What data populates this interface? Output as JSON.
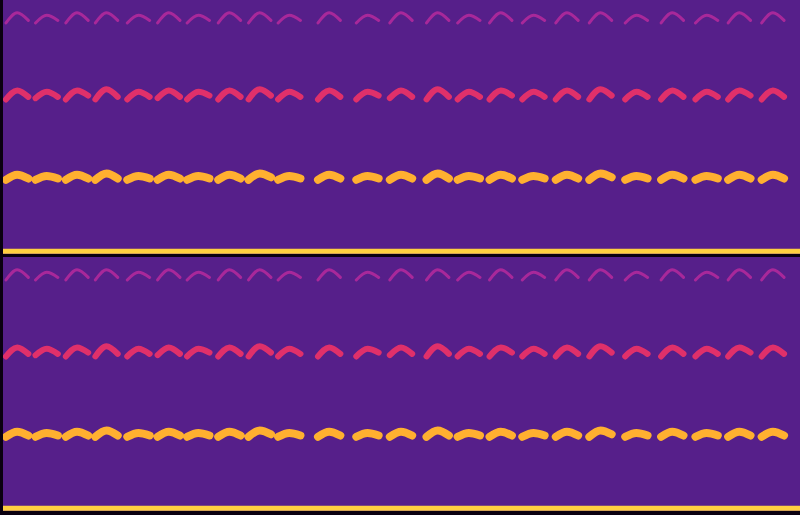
{
  "chart_data": [
    {
      "type": "line",
      "tick_labels": false,
      "grid": false,
      "xlim": [
        0,
        100
      ],
      "ylim": [
        0,
        100
      ],
      "x": [
        0.5,
        1.9,
        3.3,
        3.9,
        4.2,
        5.6,
        7.0,
        7.6,
        8.0,
        9.4,
        10.8,
        11.4,
        11.7,
        13.1,
        14.5,
        15.1,
        15.7,
        17.1,
        18.5,
        19.1,
        19.5,
        20.9,
        22.3,
        22.9,
        23.2,
        24.6,
        26.0,
        26.6,
        27.1,
        28.5,
        29.9,
        30.5,
        30.9,
        32.3,
        33.7,
        34.3,
        34.6,
        36.0,
        37.4,
        38.0,
        39.6,
        41.0,
        42.4,
        43.0,
        44.4,
        45.8,
        47.2,
        47.8,
        48.6,
        50.0,
        51.4,
        52.0,
        53.2,
        54.6,
        56.0,
        56.6,
        57.1,
        58.5,
        59.9,
        60.5,
        61.1,
        62.5,
        63.9,
        64.5,
        65.2,
        66.6,
        68.0,
        68.6,
        69.4,
        70.8,
        72.2,
        72.8,
        73.6,
        75.0,
        76.4,
        77.0,
        78.1,
        79.5,
        80.9,
        81.5,
        82.6,
        84.0,
        85.4,
        86.0,
        86.9,
        88.3,
        89.7,
        90.3,
        91.0,
        92.4,
        93.8,
        94.4,
        95.2,
        96.6,
        98.0,
        98.6
      ],
      "series": [
        {
          "color": "#a8289a",
          "line_style": "solid",
          "values": [
            91,
            95,
            92,
            null,
            91,
            94,
            92,
            null,
            91,
            95,
            92,
            null,
            91,
            95,
            92,
            null,
            91,
            94,
            92,
            null,
            91,
            95,
            92,
            null,
            91,
            94,
            92,
            null,
            91,
            95,
            92,
            null,
            91,
            95,
            92,
            null,
            91,
            94,
            92,
            null,
            91,
            95,
            92,
            null,
            91,
            94,
            92,
            null,
            91,
            95,
            92,
            null,
            91,
            95,
            92,
            null,
            91,
            94,
            92,
            null,
            91,
            95,
            92,
            null,
            91,
            94,
            92,
            null,
            91,
            95,
            92,
            null,
            91,
            95,
            92,
            null,
            91,
            94,
            92,
            null,
            91,
            95,
            92,
            null,
            91,
            94,
            92,
            null,
            91,
            95,
            92,
            null,
            91,
            95,
            92,
            null
          ]
        },
        {
          "color": "#e0306a",
          "line_style": "solid",
          "values": [
            61,
            64.5,
            62,
            null,
            61.5,
            64,
            62,
            null,
            61,
            64.5,
            62.5,
            null,
            61,
            65,
            62,
            null,
            61,
            64,
            62,
            null,
            61.5,
            64.5,
            62,
            null,
            61,
            64,
            62.5,
            null,
            61,
            64.5,
            62,
            null,
            61,
            65,
            62.5,
            null,
            61,
            64,
            62,
            null,
            61,
            64.5,
            62,
            null,
            61,
            64,
            62.5,
            null,
            61.5,
            64.5,
            62,
            null,
            61,
            65,
            62,
            null,
            61,
            64,
            62,
            null,
            61,
            64.5,
            62.5,
            null,
            61,
            64,
            62,
            null,
            61,
            64.5,
            62,
            null,
            61,
            65,
            62.5,
            null,
            61,
            64,
            62,
            null,
            61,
            64.5,
            62,
            null,
            61,
            64,
            62,
            null,
            61,
            64.5,
            62.5,
            null,
            61,
            64.5,
            62,
            null
          ]
        },
        {
          "color": "#ffb030",
          "line_style": "solid",
          "values": [
            29.5,
            31.5,
            30,
            null,
            29.5,
            31,
            30,
            null,
            29.5,
            31.5,
            30,
            null,
            29.5,
            32,
            30,
            null,
            29.5,
            31,
            30,
            null,
            29.5,
            31.5,
            30,
            null,
            29.5,
            31,
            30,
            null,
            29.5,
            31.5,
            30,
            null,
            29.5,
            32,
            30.5,
            null,
            29.5,
            31,
            30,
            null,
            29.5,
            31.5,
            30,
            null,
            29.5,
            31,
            30,
            null,
            29.5,
            31.5,
            30,
            null,
            29.5,
            32,
            30,
            null,
            29.5,
            31,
            30,
            null,
            29.5,
            31.5,
            30,
            null,
            29.5,
            31,
            30,
            null,
            29.5,
            31.5,
            30,
            null,
            29.5,
            32,
            30.5,
            null,
            29.5,
            31,
            30,
            null,
            29.5,
            31.5,
            30,
            null,
            29.5,
            31,
            30,
            null,
            29.5,
            31.5,
            30,
            null,
            29.5,
            31.5,
            30,
            null
          ]
        },
        {
          "color": "#ffd040",
          "line_style": "solid",
          "x": [
            0,
            100
          ],
          "values": [
            1.5,
            1.5
          ]
        }
      ]
    },
    {
      "type": "line",
      "tick_labels": false,
      "grid": false,
      "xlim": [
        0,
        100
      ],
      "ylim": [
        0,
        100
      ],
      "x": [
        0.5,
        1.9,
        3.3,
        3.9,
        4.2,
        5.6,
        7.0,
        7.6,
        8.0,
        9.4,
        10.8,
        11.4,
        11.7,
        13.1,
        14.5,
        15.1,
        15.7,
        17.1,
        18.5,
        19.1,
        19.5,
        20.9,
        22.3,
        22.9,
        23.2,
        24.6,
        26.0,
        26.6,
        27.1,
        28.5,
        29.9,
        30.5,
        30.9,
        32.3,
        33.7,
        34.3,
        34.6,
        36.0,
        37.4,
        38.0,
        39.6,
        41.0,
        42.4,
        43.0,
        44.4,
        45.8,
        47.2,
        47.8,
        48.6,
        50.0,
        51.4,
        52.0,
        53.2,
        54.6,
        56.0,
        56.6,
        57.1,
        58.5,
        59.9,
        60.5,
        61.1,
        62.5,
        63.9,
        64.5,
        65.2,
        66.6,
        68.0,
        68.6,
        69.4,
        70.8,
        72.2,
        72.8,
        73.6,
        75.0,
        76.4,
        77.0,
        78.1,
        79.5,
        80.9,
        81.5,
        82.6,
        84.0,
        85.4,
        86.0,
        86.9,
        88.3,
        89.7,
        90.3,
        91.0,
        92.4,
        93.8,
        94.4,
        95.2,
        96.6,
        98.0,
        98.6
      ],
      "series": [
        {
          "color": "#a8289a",
          "line_style": "solid",
          "values": [
            91,
            95,
            92,
            null,
            91,
            94,
            92,
            null,
            91,
            95,
            92,
            null,
            91,
            95,
            92,
            null,
            91,
            94,
            92,
            null,
            91,
            95,
            92,
            null,
            91,
            94,
            92,
            null,
            91,
            95,
            92,
            null,
            91,
            95,
            92,
            null,
            91,
            94,
            92,
            null,
            91,
            95,
            92,
            null,
            91,
            94,
            92,
            null,
            91,
            95,
            92,
            null,
            91,
            95,
            92,
            null,
            91,
            94,
            92,
            null,
            91,
            95,
            92,
            null,
            91,
            94,
            92,
            null,
            91,
            95,
            92,
            null,
            91,
            95,
            92,
            null,
            91,
            94,
            92,
            null,
            91,
            95,
            92,
            null,
            91,
            94,
            92,
            null,
            91,
            95,
            92,
            null,
            91,
            95,
            92,
            null
          ]
        },
        {
          "color": "#e0306a",
          "line_style": "solid",
          "values": [
            61,
            64.5,
            62,
            null,
            61.5,
            64,
            62,
            null,
            61,
            64.5,
            62.5,
            null,
            61,
            65,
            62,
            null,
            61,
            64,
            62,
            null,
            61.5,
            64.5,
            62,
            null,
            61,
            64,
            62.5,
            null,
            61,
            64.5,
            62,
            null,
            61,
            65,
            62.5,
            null,
            61,
            64,
            62,
            null,
            61,
            64.5,
            62,
            null,
            61,
            64,
            62.5,
            null,
            61.5,
            64.5,
            62,
            null,
            61,
            65,
            62,
            null,
            61,
            64,
            62,
            null,
            61,
            64.5,
            62.5,
            null,
            61,
            64,
            62,
            null,
            61,
            64.5,
            62,
            null,
            61,
            65,
            62.5,
            null,
            61,
            64,
            62,
            null,
            61,
            64.5,
            62,
            null,
            61,
            64,
            62,
            null,
            61,
            64.5,
            62.5,
            null,
            61,
            64.5,
            62,
            null
          ]
        },
        {
          "color": "#ffb030",
          "line_style": "solid",
          "values": [
            29.5,
            31.5,
            30,
            null,
            29.5,
            31,
            30,
            null,
            29.5,
            31.5,
            30,
            null,
            29.5,
            32,
            30,
            null,
            29.5,
            31,
            30,
            null,
            29.5,
            31.5,
            30,
            null,
            29.5,
            31,
            30,
            null,
            29.5,
            31.5,
            30,
            null,
            29.5,
            32,
            30.5,
            null,
            29.5,
            31,
            30,
            null,
            29.5,
            31.5,
            30,
            null,
            29.5,
            31,
            30,
            null,
            29.5,
            31.5,
            30,
            null,
            29.5,
            32,
            30,
            null,
            29.5,
            31,
            30,
            null,
            29.5,
            31.5,
            30,
            null,
            29.5,
            31,
            30,
            null,
            29.5,
            31.5,
            30,
            null,
            29.5,
            32,
            30.5,
            null,
            29.5,
            31,
            30,
            null,
            29.5,
            31.5,
            30,
            null,
            29.5,
            31,
            30,
            null,
            29.5,
            31.5,
            30,
            null,
            29.5,
            31.5,
            30,
            null
          ]
        },
        {
          "color": "#ffd040",
          "line_style": "solid",
          "x": [
            0,
            100
          ],
          "values": [
            1.5,
            1.5
          ]
        }
      ]
    }
  ]
}
